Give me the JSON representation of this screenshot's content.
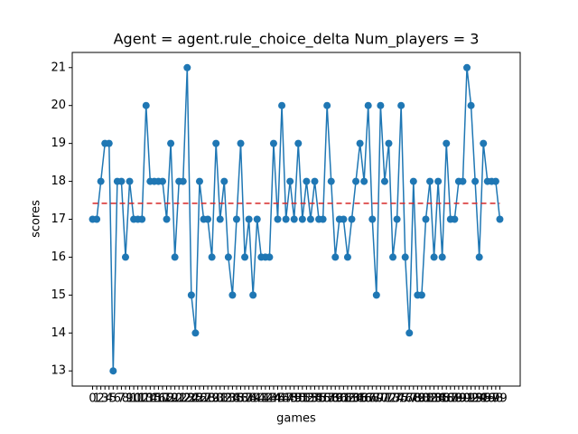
{
  "chart_data": {
    "type": "line",
    "title": "Agent = agent.rule_choice_delta Num_players = 3",
    "xlabel": "games",
    "ylabel": "scores",
    "x": [
      0,
      1,
      2,
      3,
      4,
      5,
      6,
      7,
      8,
      9,
      10,
      11,
      12,
      13,
      14,
      15,
      16,
      17,
      18,
      19,
      20,
      21,
      22,
      23,
      24,
      25,
      26,
      27,
      28,
      29,
      30,
      31,
      32,
      33,
      34,
      35,
      36,
      37,
      38,
      39,
      40,
      41,
      42,
      43,
      44,
      45,
      46,
      47,
      48,
      49,
      50,
      51,
      52,
      53,
      54,
      55,
      56,
      57,
      58,
      59,
      60,
      61,
      62,
      63,
      64,
      65,
      66,
      67,
      68,
      69,
      70,
      71,
      72,
      73,
      74,
      75,
      76,
      77,
      78,
      79,
      80,
      81,
      82,
      83,
      84,
      85,
      86,
      87,
      88,
      89,
      90,
      91,
      92,
      93,
      94,
      95,
      96,
      97,
      98,
      99
    ],
    "series": [
      {
        "name": "scores",
        "color": "#1f77b4",
        "values": [
          17,
          17,
          18,
          19,
          19,
          13,
          18,
          18,
          16,
          18,
          17,
          17,
          17,
          20,
          18,
          18,
          18,
          18,
          17,
          19,
          16,
          18,
          18,
          21,
          15,
          14,
          18,
          17,
          17,
          16,
          19,
          17,
          18,
          16,
          15,
          17,
          19,
          16,
          17,
          15,
          17,
          16,
          16,
          16,
          19,
          17,
          20,
          17,
          18,
          17,
          19,
          17,
          18,
          17,
          18,
          17,
          17,
          20,
          18,
          16,
          17,
          17,
          16,
          17,
          18,
          19,
          18,
          20,
          17,
          15,
          20,
          18,
          19,
          16,
          17,
          20,
          16,
          14,
          18,
          15,
          15,
          17,
          18,
          16,
          18,
          16,
          19,
          17,
          17,
          18,
          18,
          21,
          20,
          18,
          16,
          19,
          18,
          18,
          18,
          17
        ]
      }
    ],
    "reference_line": {
      "value": 17.42,
      "color": "#d62728"
    },
    "xlim": [
      -4.95,
      103.95
    ],
    "xticks": [
      0,
      1,
      2,
      3,
      4,
      5,
      6,
      7,
      8,
      9,
      10,
      11,
      12,
      13,
      14,
      15,
      16,
      17,
      18,
      19,
      20,
      21,
      22,
      23,
      24,
      25,
      26,
      27,
      28,
      29,
      30,
      31,
      32,
      33,
      34,
      35,
      36,
      37,
      38,
      39,
      40,
      41,
      42,
      43,
      44,
      45,
      46,
      47,
      48,
      49,
      50,
      51,
      52,
      53,
      54,
      55,
      56,
      57,
      58,
      59,
      60,
      61,
      62,
      63,
      64,
      65,
      66,
      67,
      68,
      69,
      70,
      71,
      72,
      73,
      74,
      75,
      76,
      77,
      78,
      79,
      80,
      81,
      82,
      83,
      84,
      85,
      86,
      87,
      88,
      89,
      90,
      91,
      92,
      93,
      94,
      95,
      96,
      97,
      98,
      99
    ],
    "ylim": [
      12.6,
      21.4
    ],
    "yticks": [
      13,
      14,
      15,
      16,
      17,
      18,
      19,
      20,
      21
    ],
    "grid": false
  }
}
